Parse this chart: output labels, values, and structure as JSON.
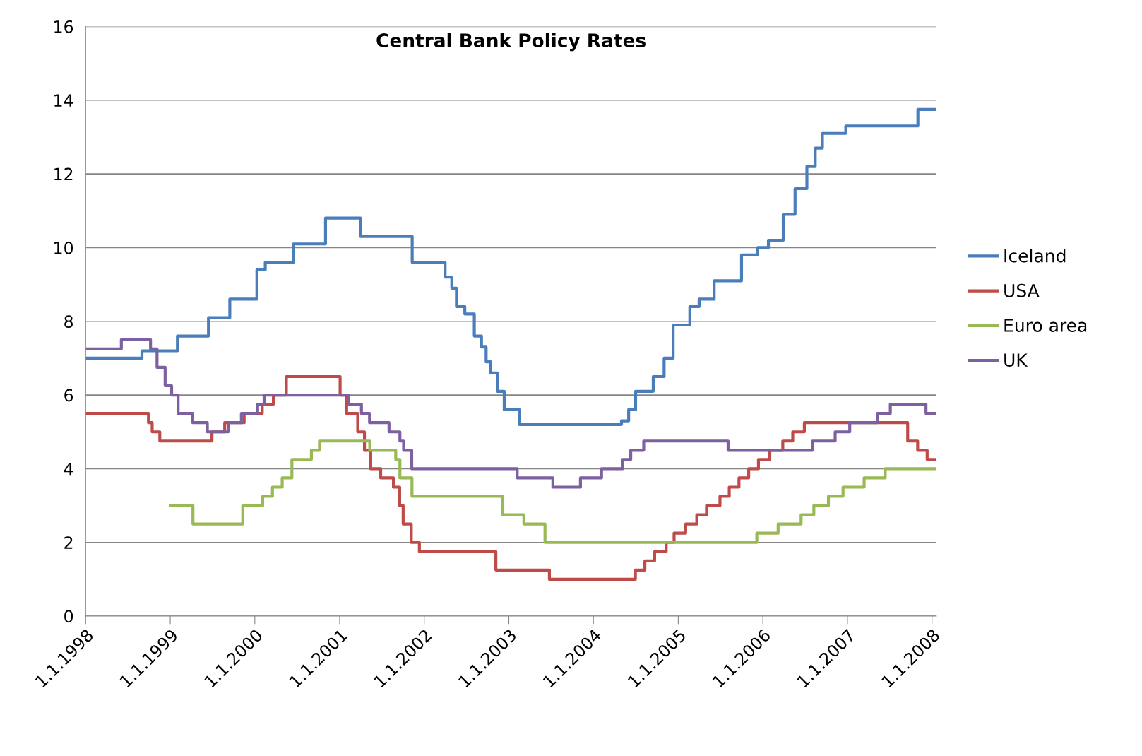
{
  "chart_data": {
    "type": "step",
    "title": "Central Bank Policy Rates",
    "xlim": [
      "1998-01-01",
      "2008-01-20"
    ],
    "xticks": [
      {
        "value": "1998-01-01",
        "label": "1.1.1998"
      },
      {
        "value": "1999-01-01",
        "label": "1.1.1999"
      },
      {
        "value": "2000-01-01",
        "label": "1.1.2000"
      },
      {
        "value": "2001-01-01",
        "label": "1.1.2001"
      },
      {
        "value": "2002-01-01",
        "label": "1.1.2002"
      },
      {
        "value": "2003-01-01",
        "label": "1.1.2003"
      },
      {
        "value": "2004-01-01",
        "label": "1.1.2004"
      },
      {
        "value": "2005-01-01",
        "label": "1.1.2005"
      },
      {
        "value": "2006-01-01",
        "label": "1.1.2006"
      },
      {
        "value": "2007-01-01",
        "label": "1.1.2007"
      },
      {
        "value": "2008-01-01",
        "label": "1.1.2008"
      }
    ],
    "ylim": [
      0,
      16
    ],
    "yticks": [
      0,
      2,
      4,
      6,
      8,
      10,
      12,
      14,
      16
    ],
    "grid": "y",
    "legend": "right",
    "line_style": "solid",
    "marker": "none",
    "series": [
      {
        "name": "Iceland",
        "color": "#4a7ebb",
        "x": [
          "1998-01-01",
          "1998-09-01",
          "1999-02-01",
          "1999-06-15",
          "1999-09-15",
          "2000-01-10",
          "2000-02-15",
          "2000-06-15",
          "2000-11-01",
          "2001-04-01",
          "2001-11-10",
          "2002-04-01",
          "2002-04-30",
          "2002-05-20",
          "2002-06-25",
          "2002-08-05",
          "2002-09-05",
          "2002-09-25",
          "2002-10-15",
          "2002-11-12",
          "2002-12-12",
          "2003-02-15",
          "2004-05-01",
          "2004-06-01",
          "2004-07-01",
          "2004-09-15",
          "2004-11-01",
          "2004-12-10",
          "2005-02-20",
          "2005-04-01",
          "2005-06-05",
          "2005-10-01",
          "2005-12-10",
          "2006-01-25",
          "2006-03-30",
          "2006-05-20",
          "2006-07-10",
          "2006-08-15",
          "2006-09-15",
          "2006-12-25",
          "2007-11-01",
          "2008-01-20"
        ],
        "values": [
          7.0,
          7.2,
          7.6,
          8.1,
          8.6,
          9.4,
          9.6,
          10.1,
          10.8,
          10.3,
          9.6,
          9.2,
          8.9,
          8.4,
          8.2,
          7.6,
          7.3,
          6.9,
          6.6,
          6.1,
          5.6,
          5.2,
          5.3,
          5.6,
          6.1,
          6.5,
          7.0,
          7.9,
          8.4,
          8.6,
          9.1,
          9.8,
          10.0,
          10.2,
          10.9,
          11.6,
          12.2,
          12.7,
          13.1,
          13.3,
          13.75,
          13.75
        ]
      },
      {
        "name": "USA",
        "color": "#be4b48",
        "x": [
          "1998-01-01",
          "1998-09-29",
          "1998-10-15",
          "1998-11-17",
          "1999-06-30",
          "1999-08-24",
          "1999-11-16",
          "2000-02-02",
          "2000-03-21",
          "2000-05-16",
          "2001-01-03",
          "2001-01-31",
          "2001-03-20",
          "2001-04-18",
          "2001-05-15",
          "2001-06-27",
          "2001-08-21",
          "2001-09-17",
          "2001-10-02",
          "2001-11-06",
          "2001-12-11",
          "2002-11-06",
          "2003-06-25",
          "2004-06-30",
          "2004-08-10",
          "2004-09-21",
          "2004-11-10",
          "2004-12-14",
          "2005-02-02",
          "2005-03-22",
          "2005-05-03",
          "2005-06-30",
          "2005-08-09",
          "2005-09-20",
          "2005-11-01",
          "2005-12-13",
          "2006-01-31",
          "2006-03-28",
          "2006-05-10",
          "2006-06-29",
          "2007-09-18",
          "2007-10-31",
          "2007-12-11",
          "2008-01-20"
        ],
        "values": [
          5.5,
          5.25,
          5.0,
          4.75,
          5.0,
          5.25,
          5.5,
          5.75,
          6.0,
          6.5,
          6.0,
          5.5,
          5.0,
          4.5,
          4.0,
          3.75,
          3.5,
          3.0,
          2.5,
          2.0,
          1.75,
          1.25,
          1.0,
          1.25,
          1.5,
          1.75,
          2.0,
          2.25,
          2.5,
          2.75,
          3.0,
          3.25,
          3.5,
          3.75,
          4.0,
          4.25,
          4.5,
          4.75,
          5.0,
          5.25,
          4.75,
          4.5,
          4.25,
          4.25
        ]
      },
      {
        "name": "Euro area",
        "color": "#98b954",
        "x": [
          "1999-01-01",
          "1999-04-09",
          "1999-11-10",
          "2000-02-04",
          "2000-03-17",
          "2000-04-28",
          "2000-06-09",
          "2000-09-01",
          "2000-10-06",
          "2001-05-11",
          "2001-08-31",
          "2001-09-18",
          "2001-11-09",
          "2002-12-06",
          "2003-03-07",
          "2003-06-06",
          "2005-12-06",
          "2006-03-08",
          "2006-06-15",
          "2006-08-09",
          "2006-10-11",
          "2006-12-13",
          "2007-03-14",
          "2007-06-13",
          "2008-01-20"
        ],
        "values": [
          3.0,
          2.5,
          3.0,
          3.25,
          3.5,
          3.75,
          4.25,
          4.5,
          4.75,
          4.5,
          4.25,
          3.75,
          3.25,
          2.75,
          2.5,
          2.0,
          2.25,
          2.5,
          2.75,
          3.0,
          3.25,
          3.5,
          3.75,
          4.0,
          4.0
        ]
      },
      {
        "name": "UK",
        "color": "#7d60a0",
        "x": [
          "1998-01-01",
          "1998-06-04",
          "1998-10-08",
          "1998-11-05",
          "1998-12-10",
          "1999-01-07",
          "1999-02-04",
          "1999-04-08",
          "1999-06-10",
          "1999-09-08",
          "1999-11-04",
          "2000-01-13",
          "2000-02-10",
          "2001-02-08",
          "2001-04-05",
          "2001-05-10",
          "2001-08-02",
          "2001-09-18",
          "2001-10-04",
          "2001-11-08",
          "2003-02-06",
          "2003-07-10",
          "2003-11-06",
          "2004-02-05",
          "2004-05-06",
          "2004-06-10",
          "2004-08-05",
          "2005-08-04",
          "2006-08-03",
          "2006-11-09",
          "2007-01-11",
          "2007-05-10",
          "2007-07-05",
          "2007-12-06",
          "2008-01-20"
        ],
        "values": [
          7.25,
          7.5,
          7.25,
          6.75,
          6.25,
          6.0,
          5.5,
          5.25,
          5.0,
          5.25,
          5.5,
          5.75,
          6.0,
          5.75,
          5.5,
          5.25,
          5.0,
          4.75,
          4.5,
          4.0,
          3.75,
          3.5,
          3.75,
          4.0,
          4.25,
          4.5,
          4.75,
          4.5,
          4.75,
          5.0,
          5.25,
          5.5,
          5.75,
          5.5,
          5.5
        ]
      }
    ]
  }
}
